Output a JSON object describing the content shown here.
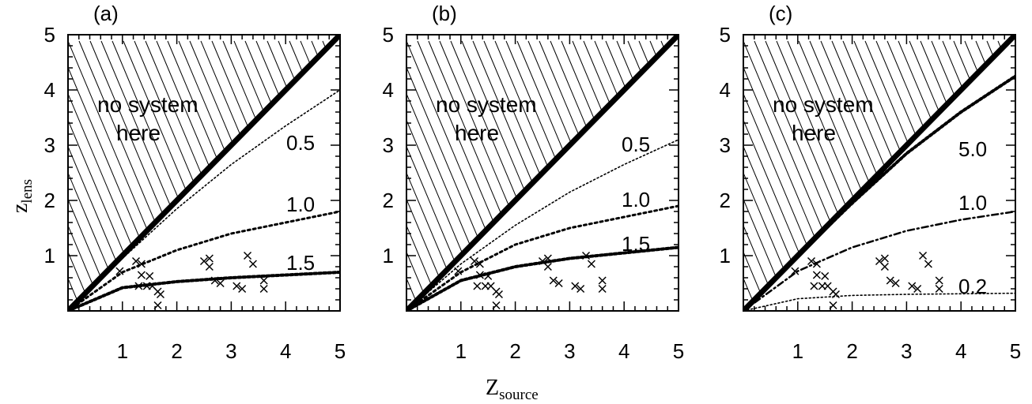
{
  "chart_data": {
    "type": "line",
    "xlabel": "Z",
    "xlabel_sub": "source",
    "ylabel": "z",
    "ylabel_sub": "lens",
    "xlim": [
      0,
      5
    ],
    "ylim": [
      0,
      5
    ],
    "xticks": [
      "1",
      "2",
      "3",
      "4",
      "5"
    ],
    "yticks": [
      "1",
      "2",
      "3",
      "4",
      "5"
    ],
    "shaded_region_label": [
      "no system",
      "here"
    ],
    "data_points": [
      {
        "x": 0.95,
        "y": 0.72
      },
      {
        "x": 1.25,
        "y": 0.9
      },
      {
        "x": 1.35,
        "y": 0.85
      },
      {
        "x": 1.35,
        "y": 0.65
      },
      {
        "x": 1.5,
        "y": 0.63
      },
      {
        "x": 1.3,
        "y": 0.45
      },
      {
        "x": 1.45,
        "y": 0.45
      },
      {
        "x": 1.55,
        "y": 0.45
      },
      {
        "x": 1.65,
        "y": 0.35
      },
      {
        "x": 1.7,
        "y": 0.3
      },
      {
        "x": 1.65,
        "y": 0.1
      },
      {
        "x": 2.5,
        "y": 0.9
      },
      {
        "x": 2.6,
        "y": 0.95
      },
      {
        "x": 2.6,
        "y": 0.8
      },
      {
        "x": 2.7,
        "y": 0.55
      },
      {
        "x": 2.8,
        "y": 0.5
      },
      {
        "x": 3.1,
        "y": 0.45
      },
      {
        "x": 3.2,
        "y": 0.4
      },
      {
        "x": 3.3,
        "y": 1.0
      },
      {
        "x": 3.4,
        "y": 0.85
      },
      {
        "x": 3.6,
        "y": 0.55
      },
      {
        "x": 3.6,
        "y": 0.4
      }
    ],
    "panels": [
      {
        "label": "(a)",
        "curves": [
          {
            "label": "",
            "style": "boundary",
            "points": [
              [
                0,
                0
              ],
              [
                5,
                5
              ]
            ]
          },
          {
            "label": "0.5",
            "style": "fine",
            "points": [
              [
                0,
                0
              ],
              [
                1,
                0.95
              ],
              [
                2,
                1.85
              ],
              [
                3,
                2.65
              ],
              [
                4,
                3.35
              ],
              [
                5,
                4.0
              ]
            ]
          },
          {
            "label": "1.0",
            "style": "medium",
            "points": [
              [
                0,
                0
              ],
              [
                1,
                0.7
              ],
              [
                2,
                1.1
              ],
              [
                3,
                1.4
              ],
              [
                4,
                1.6
              ],
              [
                5,
                1.8
              ]
            ]
          },
          {
            "label": "1.5",
            "style": "heavy",
            "points": [
              [
                0,
                0
              ],
              [
                1,
                0.42
              ],
              [
                2,
                0.53
              ],
              [
                3,
                0.6
              ],
              [
                4,
                0.65
              ],
              [
                5,
                0.7
              ]
            ]
          }
        ]
      },
      {
        "label": "(b)",
        "curves": [
          {
            "label": "",
            "style": "boundary",
            "points": [
              [
                0,
                0
              ],
              [
                5,
                5
              ]
            ]
          },
          {
            "label": "0.5",
            "style": "fine",
            "points": [
              [
                0,
                0
              ],
              [
                1,
                0.85
              ],
              [
                2,
                1.55
              ],
              [
                3,
                2.15
              ],
              [
                4,
                2.65
              ],
              [
                5,
                3.1
              ]
            ]
          },
          {
            "label": "1.0",
            "style": "medium",
            "points": [
              [
                0,
                0
              ],
              [
                1,
                0.7
              ],
              [
                2,
                1.2
              ],
              [
                3,
                1.5
              ],
              [
                4,
                1.7
              ],
              [
                5,
                1.9
              ]
            ]
          },
          {
            "label": "1.5",
            "style": "heavy",
            "points": [
              [
                0,
                0
              ],
              [
                1,
                0.55
              ],
              [
                2,
                0.8
              ],
              [
                3,
                0.95
              ],
              [
                4,
                1.05
              ],
              [
                5,
                1.15
              ]
            ]
          }
        ]
      },
      {
        "label": "(c)",
        "curves": [
          {
            "label": "",
            "style": "boundary",
            "points": [
              [
                0,
                0
              ],
              [
                5,
                5
              ]
            ]
          },
          {
            "label": "5.0",
            "style": "heavy",
            "points": [
              [
                0,
                0
              ],
              [
                1,
                1.0
              ],
              [
                2,
                1.95
              ],
              [
                3,
                2.85
              ],
              [
                4,
                3.6
              ],
              [
                5,
                4.25
              ]
            ]
          },
          {
            "label": "1.0",
            "style": "dashdot",
            "points": [
              [
                0,
                0
              ],
              [
                1,
                0.72
              ],
              [
                2,
                1.15
              ],
              [
                3,
                1.45
              ],
              [
                4,
                1.65
              ],
              [
                5,
                1.8
              ]
            ]
          },
          {
            "label": "0.2",
            "style": "fine",
            "points": [
              [
                0,
                0
              ],
              [
                1,
                0.22
              ],
              [
                2,
                0.28
              ],
              [
                3,
                0.3
              ],
              [
                4,
                0.31
              ],
              [
                5,
                0.32
              ]
            ]
          }
        ]
      }
    ]
  }
}
